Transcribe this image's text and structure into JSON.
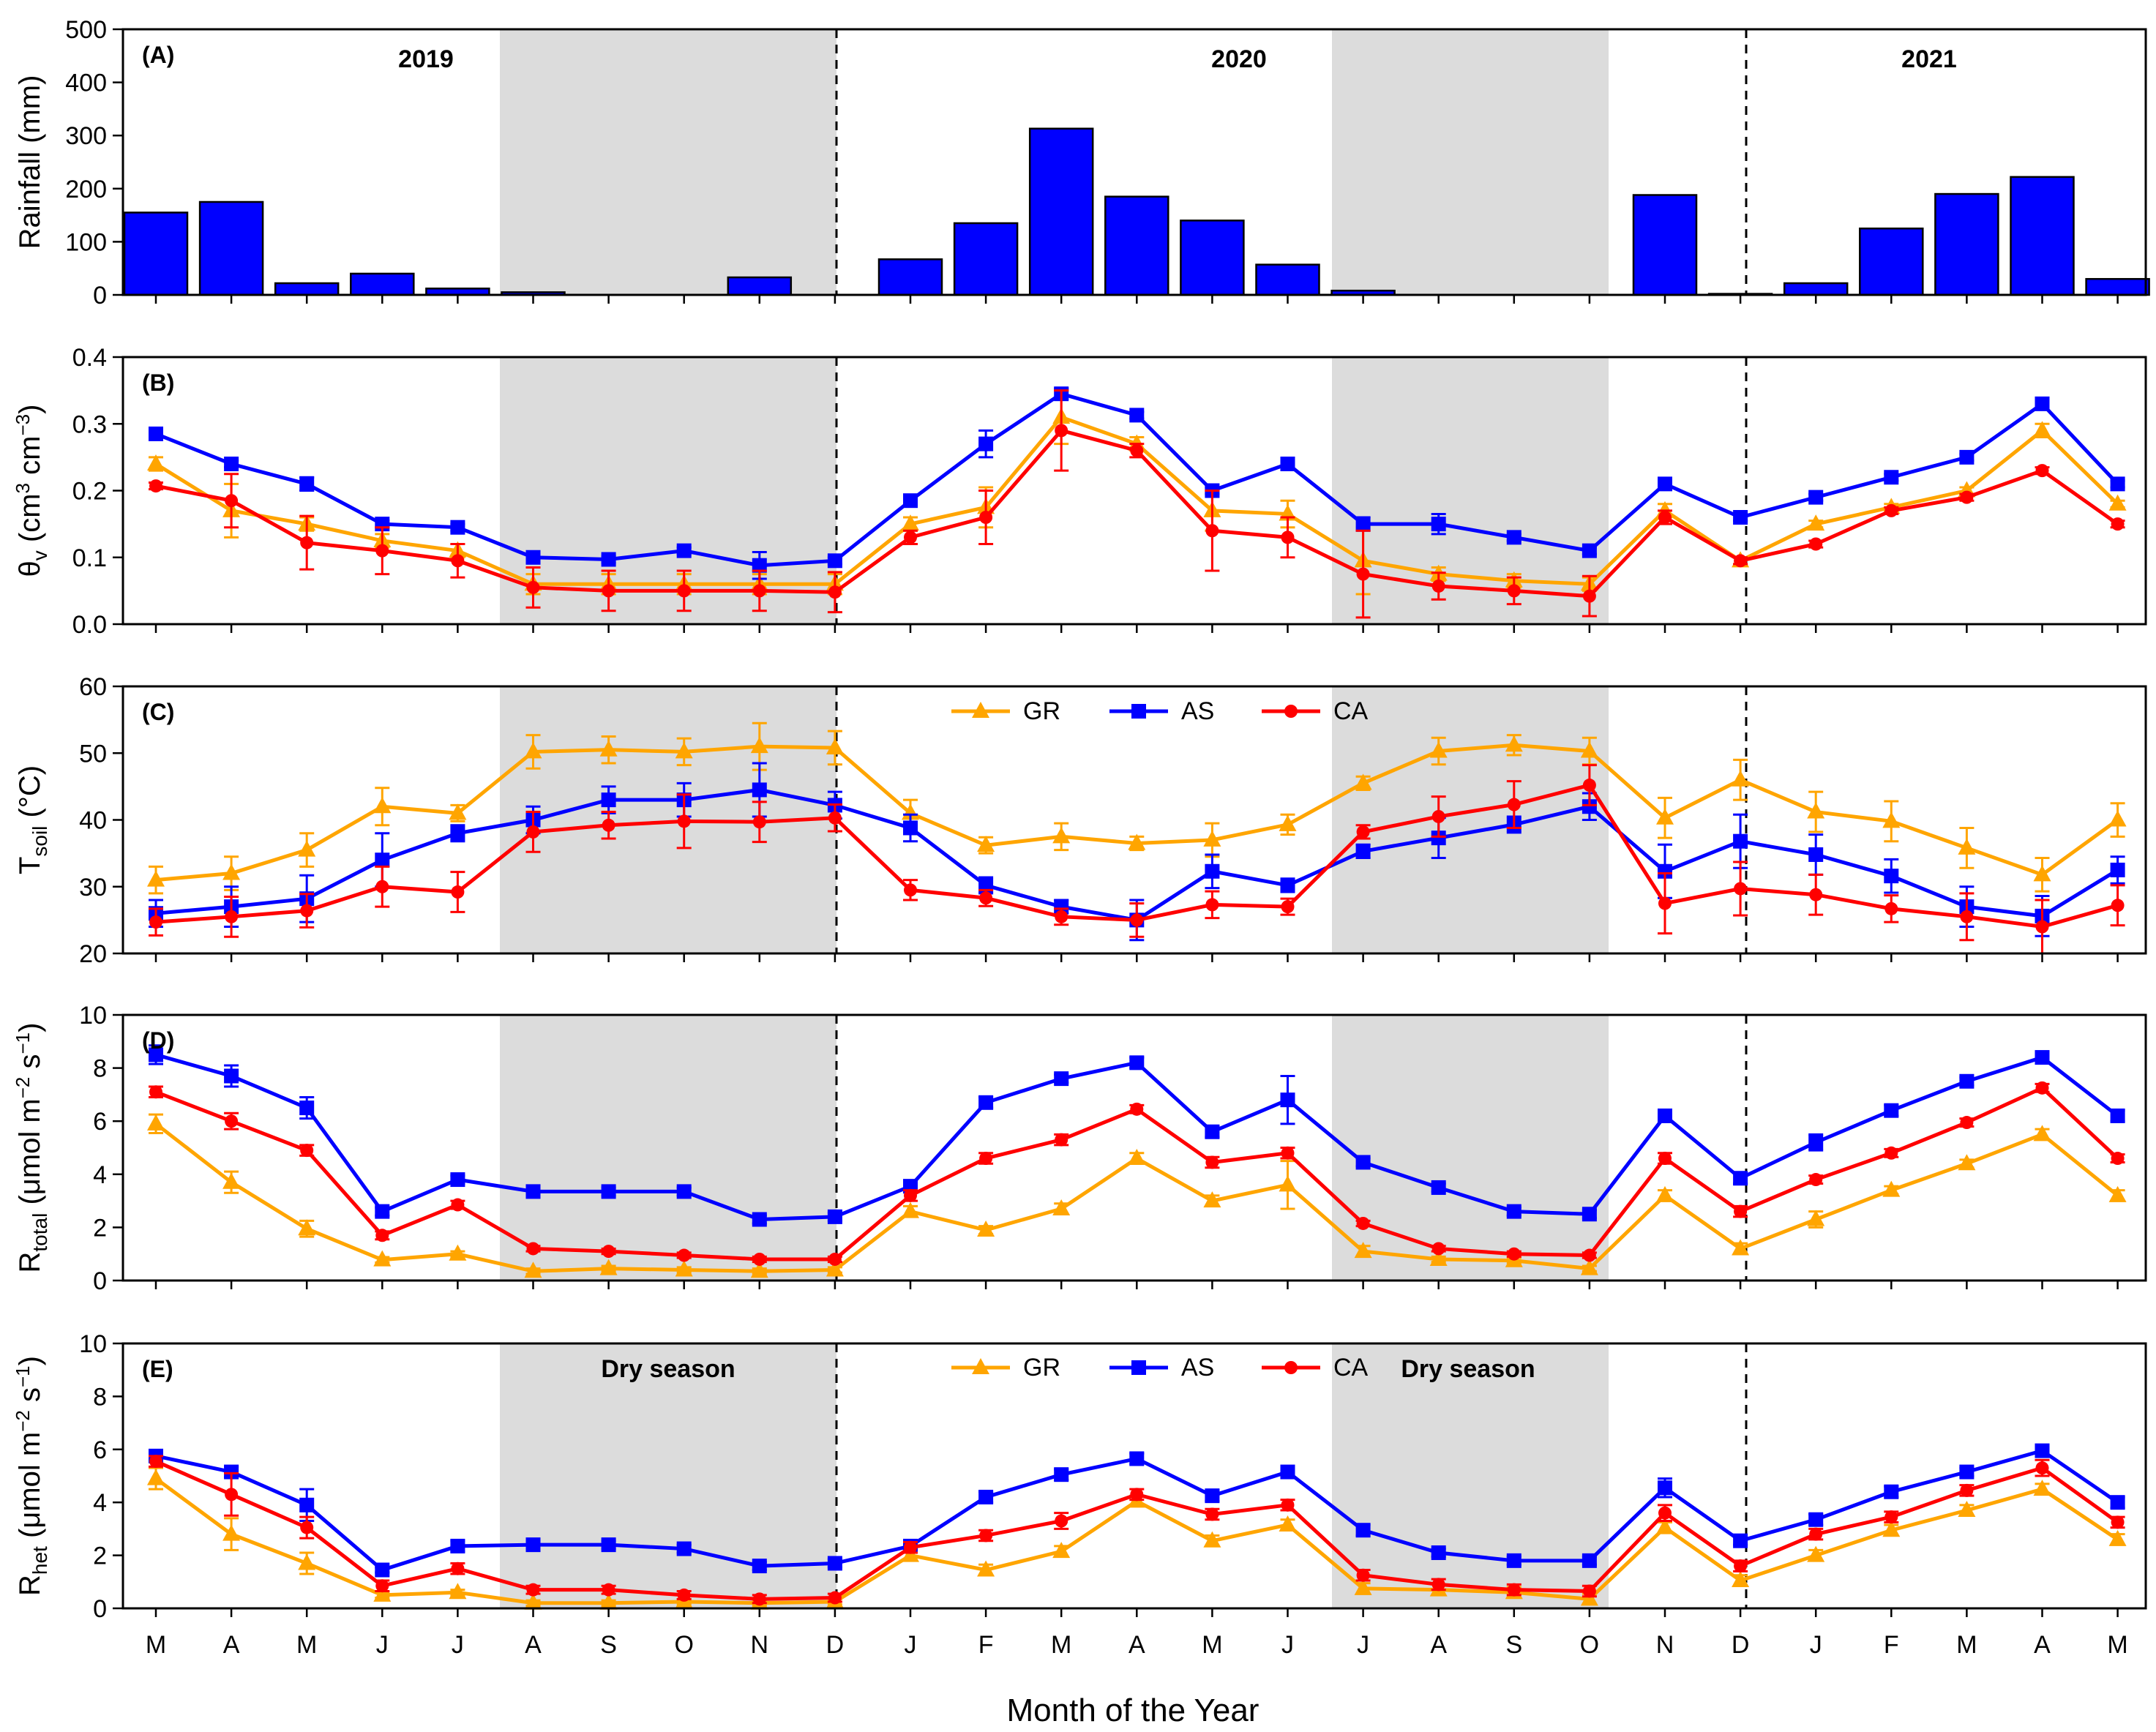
{
  "figure": {
    "xlabel": "Month of the Year",
    "months": [
      "M",
      "A",
      "M",
      "J",
      "J",
      "A",
      "S",
      "O",
      "N",
      "D",
      "J",
      "F",
      "M",
      "A",
      "M",
      "J",
      "J",
      "A",
      "S",
      "O",
      "N",
      "D",
      "J",
      "F",
      "M",
      "A",
      "M"
    ],
    "year_labels": [
      "2019",
      "2020",
      "2021"
    ],
    "dry_season_label": "Dry season",
    "colors": {
      "GR": "#FFA500",
      "AS": "#0000FF",
      "CA": "#FF0000",
      "rain_bar": "#0000FF",
      "dry_band": "#DCDCDC"
    }
  },
  "chart_data": [
    {
      "panel": "(A)",
      "type": "bar",
      "ylabel": "Rainfall (mm)",
      "ylim": [
        0,
        500
      ],
      "yticks": [
        0,
        100,
        200,
        300,
        400,
        500
      ],
      "values": [
        155,
        175,
        22,
        40,
        12,
        5,
        0,
        0,
        33,
        0,
        67,
        135,
        313,
        185,
        140,
        57,
        8,
        0,
        0,
        0,
        188,
        2,
        22,
        125,
        190,
        222,
        30
      ]
    },
    {
      "panel": "(B)",
      "type": "line",
      "ylabel": "θv (cm³ cm⁻³)",
      "ylabel_main": "θ",
      "ylabel_sub": "v",
      "ylabel_units_pre": " (cm",
      "ylabel_sup1": "3",
      "ylabel_mid": " cm",
      "ylabel_sup2": "−3",
      "ylabel_post": ")",
      "ylim": [
        0,
        0.4
      ],
      "yticks": [
        "0.0",
        "0.1",
        "0.2",
        "0.3",
        "0.4"
      ],
      "series": [
        {
          "name": "GR",
          "values": [
            0.24,
            0.17,
            0.15,
            0.125,
            0.11,
            0.06,
            0.06,
            0.06,
            0.06,
            0.06,
            0.15,
            0.175,
            0.31,
            0.27,
            0.17,
            0.165,
            0.095,
            0.075,
            0.065,
            0.06,
            0.17,
            0.095,
            0.15,
            0.175,
            0.2,
            0.29,
            0.18
          ],
          "err": [
            0.01,
            0.04,
            0.01,
            0.01,
            0.01,
            0.015,
            0.015,
            0.015,
            0.015,
            0.015,
            0.01,
            0.03,
            0.04,
            0.01,
            0.03,
            0.02,
            0.05,
            0.01,
            0.01,
            0.01,
            0.01,
            0.005,
            0.005,
            0.005,
            0.005,
            0.01,
            0.005
          ]
        },
        {
          "name": "AS",
          "values": [
            0.285,
            0.24,
            0.21,
            0.15,
            0.145,
            0.1,
            0.097,
            0.11,
            0.088,
            0.095,
            0.185,
            0.27,
            0.345,
            0.313,
            0.2,
            0.24,
            0.15,
            0.15,
            0.13,
            0.11,
            0.21,
            0.16,
            0.19,
            0.22,
            0.25,
            0.33,
            0.21
          ],
          "err": [
            0.005,
            0.005,
            0.01,
            0.005,
            0.005,
            0.005,
            0.005,
            0.005,
            0.02,
            0.005,
            0.005,
            0.02,
            0.008,
            0.005,
            0.005,
            0.005,
            0.01,
            0.015,
            0.005,
            0.005,
            0.005,
            0.005,
            0.005,
            0.005,
            0.005,
            0.005,
            0.005
          ]
        },
        {
          "name": "CA",
          "values": [
            0.207,
            0.185,
            0.122,
            0.11,
            0.095,
            0.055,
            0.05,
            0.05,
            0.05,
            0.048,
            0.13,
            0.16,
            0.29,
            0.26,
            0.14,
            0.13,
            0.075,
            0.057,
            0.05,
            0.042,
            0.16,
            0.095,
            0.12,
            0.17,
            0.19,
            0.23,
            0.15
          ],
          "err": [
            0.005,
            0.04,
            0.04,
            0.035,
            0.025,
            0.03,
            0.03,
            0.03,
            0.03,
            0.03,
            0.01,
            0.04,
            0.06,
            0.01,
            0.06,
            0.03,
            0.065,
            0.02,
            0.02,
            0.03,
            0.01,
            0.005,
            0.005,
            0.005,
            0.005,
            0.005,
            0.005
          ]
        }
      ]
    },
    {
      "panel": "(C)",
      "type": "line",
      "ylabel": "Tsoil (°C)",
      "ylabel_main": "T",
      "ylabel_sub": "soil",
      "ylabel_post": " (°C)",
      "ylim": [
        20,
        60
      ],
      "yticks": [
        "20",
        "30",
        "40",
        "50",
        "60"
      ],
      "legend": [
        "GR",
        "AS",
        "CA"
      ],
      "series": [
        {
          "name": "GR",
          "values": [
            31,
            32,
            35.5,
            42,
            41,
            50.2,
            50.5,
            50.2,
            51,
            50.8,
            41,
            36.2,
            37.5,
            36.5,
            37,
            39.3,
            45.5,
            50.3,
            51.2,
            50.3,
            40.3,
            46,
            41.2,
            39.8,
            35.8,
            31.8,
            40
          ],
          "err": [
            2,
            2.5,
            2.5,
            2.8,
            1.2,
            2.5,
            2,
            2,
            3.5,
            2.5,
            2,
            1.2,
            2,
            1,
            2.5,
            1.5,
            1,
            2,
            1.5,
            2,
            3,
            3,
            3,
            3,
            3,
            2.5,
            2.5
          ]
        },
        {
          "name": "AS",
          "values": [
            26,
            27,
            28.2,
            34,
            38,
            40,
            43,
            43,
            44.5,
            42.2,
            38.8,
            30.2,
            27,
            25,
            32.3,
            30.2,
            35.3,
            37.3,
            39.3,
            42,
            32.3,
            36.8,
            34.8,
            31.6,
            27,
            25.6,
            32.5
          ],
          "err": [
            2,
            3,
            3.5,
            4,
            1.2,
            2,
            2,
            2.5,
            4,
            2,
            2,
            1.2,
            1,
            3,
            2.5,
            1,
            1,
            3,
            1.2,
            2,
            4,
            4,
            3,
            2.5,
            3,
            3,
            2
          ]
        },
        {
          "name": "CA",
          "values": [
            24.7,
            25.5,
            26.4,
            30,
            29.2,
            38.2,
            39.2,
            39.8,
            39.7,
            40.3,
            29.5,
            28.3,
            25.5,
            25,
            27.3,
            27,
            38.2,
            40.5,
            42.3,
            45.2,
            27.5,
            29.7,
            28.8,
            26.7,
            25.5,
            24,
            27.2
          ],
          "err": [
            2,
            3,
            2.5,
            3,
            3,
            3,
            2,
            4,
            3,
            2,
            1.5,
            1.2,
            1.2,
            2.5,
            2,
            1.2,
            1,
            3,
            3.5,
            3,
            4.5,
            4,
            3,
            2,
            3.5,
            4,
            3
          ]
        }
      ]
    },
    {
      "panel": "(D)",
      "type": "line",
      "ylabel": "Rtotal (μmol m⁻² s⁻¹)",
      "ylabel_main": "R",
      "ylabel_sub": "total",
      "ylabel_units_pre": " (μmol m",
      "ylabel_sup1": "−2",
      "ylabel_mid": " s",
      "ylabel_sup2": "−1",
      "ylabel_post": ")",
      "ylim": [
        0,
        10
      ],
      "yticks": [
        "0",
        "2",
        "4",
        "6",
        "8",
        "10"
      ],
      "series": [
        {
          "name": "GR",
          "values": [
            5.9,
            3.7,
            1.95,
            0.78,
            1,
            0.35,
            0.45,
            0.4,
            0.35,
            0.4,
            2.6,
            1.9,
            2.7,
            4.6,
            3,
            3.6,
            1.1,
            0.8,
            0.75,
            0.45,
            3.2,
            1.2,
            2.3,
            3.4,
            4.4,
            5.5,
            3.2
          ],
          "err": [
            0.35,
            0.4,
            0.3,
            0.1,
            0.1,
            0.1,
            0.1,
            0.1,
            0.1,
            0.1,
            0.2,
            0.15,
            0.2,
            0.2,
            0.2,
            0.9,
            0.2,
            0.1,
            0.1,
            0.1,
            0.2,
            0.2,
            0.3,
            0.15,
            0.15,
            0.2,
            0.2
          ]
        },
        {
          "name": "AS",
          "values": [
            8.5,
            7.7,
            6.5,
            2.6,
            3.8,
            3.35,
            3.35,
            3.35,
            2.3,
            2.4,
            3.55,
            6.7,
            7.6,
            8.2,
            5.6,
            6.8,
            4.45,
            3.5,
            2.6,
            2.5,
            6.2,
            3.85,
            5.2,
            6.4,
            7.5,
            8.4,
            6.2
          ],
          "err": [
            0.35,
            0.4,
            0.4,
            0.15,
            0.15,
            0.15,
            0.15,
            0.15,
            0.15,
            0.15,
            0.15,
            0.2,
            0.15,
            0.2,
            0.2,
            0.9,
            0.15,
            0.15,
            0.15,
            0.15,
            0.2,
            0.2,
            0.3,
            0.2,
            0.15,
            0.2,
            0.2
          ]
        },
        {
          "name": "CA",
          "values": [
            7.1,
            6,
            4.9,
            1.7,
            2.85,
            1.2,
            1.1,
            0.95,
            0.8,
            0.8,
            3.2,
            4.6,
            5.3,
            6.45,
            4.45,
            4.8,
            2.15,
            1.2,
            1,
            0.95,
            4.6,
            2.6,
            3.8,
            4.8,
            5.95,
            7.25,
            4.6
          ],
          "err": [
            0.2,
            0.3,
            0.2,
            0.15,
            0.15,
            0.1,
            0.1,
            0.1,
            0.1,
            0.1,
            0.2,
            0.2,
            0.2,
            0.15,
            0.2,
            0.2,
            0.1,
            0.1,
            0.1,
            0.1,
            0.2,
            0.2,
            0.15,
            0.15,
            0.15,
            0.15,
            0.15
          ]
        }
      ]
    },
    {
      "panel": "(E)",
      "type": "line",
      "ylabel": "Rhet (μmol m⁻² s⁻¹)",
      "ylabel_main": "R",
      "ylabel_sub": "het",
      "ylabel_units_pre": " (μmol m",
      "ylabel_sup1": "−2",
      "ylabel_mid": " s",
      "ylabel_sup2": "−1",
      "ylabel_post": ")",
      "ylim": [
        0,
        10
      ],
      "yticks": [
        "0",
        "2",
        "4",
        "6",
        "8",
        "10"
      ],
      "legend": [
        "GR",
        "AS",
        "CA"
      ],
      "series": [
        {
          "name": "GR",
          "values": [
            4.9,
            2.8,
            1.7,
            0.5,
            0.6,
            0.2,
            0.2,
            0.25,
            0.2,
            0.25,
            2,
            1.45,
            2.15,
            4.05,
            2.55,
            3.15,
            0.75,
            0.7,
            0.6,
            0.35,
            3.05,
            1.05,
            2,
            2.95,
            3.7,
            4.5,
            2.6
          ],
          "err": [
            0.4,
            0.6,
            0.4,
            0.1,
            0.1,
            0.1,
            0.1,
            0.1,
            0.1,
            0.1,
            0.2,
            0.2,
            0.2,
            0.2,
            0.2,
            0.2,
            0.2,
            0.2,
            0.2,
            0.2,
            0.2,
            0.2,
            0.2,
            0.2,
            0.2,
            0.2,
            0.2
          ]
        },
        {
          "name": "AS",
          "values": [
            5.75,
            5.15,
            3.9,
            1.45,
            2.35,
            2.4,
            2.4,
            2.25,
            1.6,
            1.7,
            2.35,
            4.2,
            5.05,
            5.65,
            4.25,
            5.15,
            2.95,
            2.1,
            1.8,
            1.8,
            4.55,
            2.55,
            3.35,
            4.4,
            5.15,
            5.95,
            4
          ],
          "err": [
            0.2,
            0.2,
            0.6,
            0.1,
            0.2,
            0.15,
            0.15,
            0.15,
            0.15,
            0.15,
            0.15,
            0.2,
            0.2,
            0.2,
            0.2,
            0.2,
            0.2,
            0.15,
            0.15,
            0.15,
            0.35,
            0.15,
            0.2,
            0.2,
            0.15,
            0.2,
            0.2
          ]
        },
        {
          "name": "CA",
          "values": [
            5.55,
            4.3,
            3.05,
            0.85,
            1.5,
            0.7,
            0.7,
            0.5,
            0.35,
            0.4,
            2.3,
            2.75,
            3.3,
            4.3,
            3.55,
            3.9,
            1.25,
            0.9,
            0.7,
            0.65,
            3.6,
            1.6,
            2.8,
            3.45,
            4.45,
            5.3,
            3.25
          ],
          "err": [
            0.2,
            0.8,
            0.4,
            0.2,
            0.2,
            0.15,
            0.15,
            0.15,
            0.15,
            0.15,
            0.2,
            0.2,
            0.3,
            0.2,
            0.2,
            0.2,
            0.2,
            0.2,
            0.2,
            0.2,
            0.3,
            0.2,
            0.2,
            0.2,
            0.2,
            0.3,
            0.2
          ]
        }
      ]
    }
  ]
}
